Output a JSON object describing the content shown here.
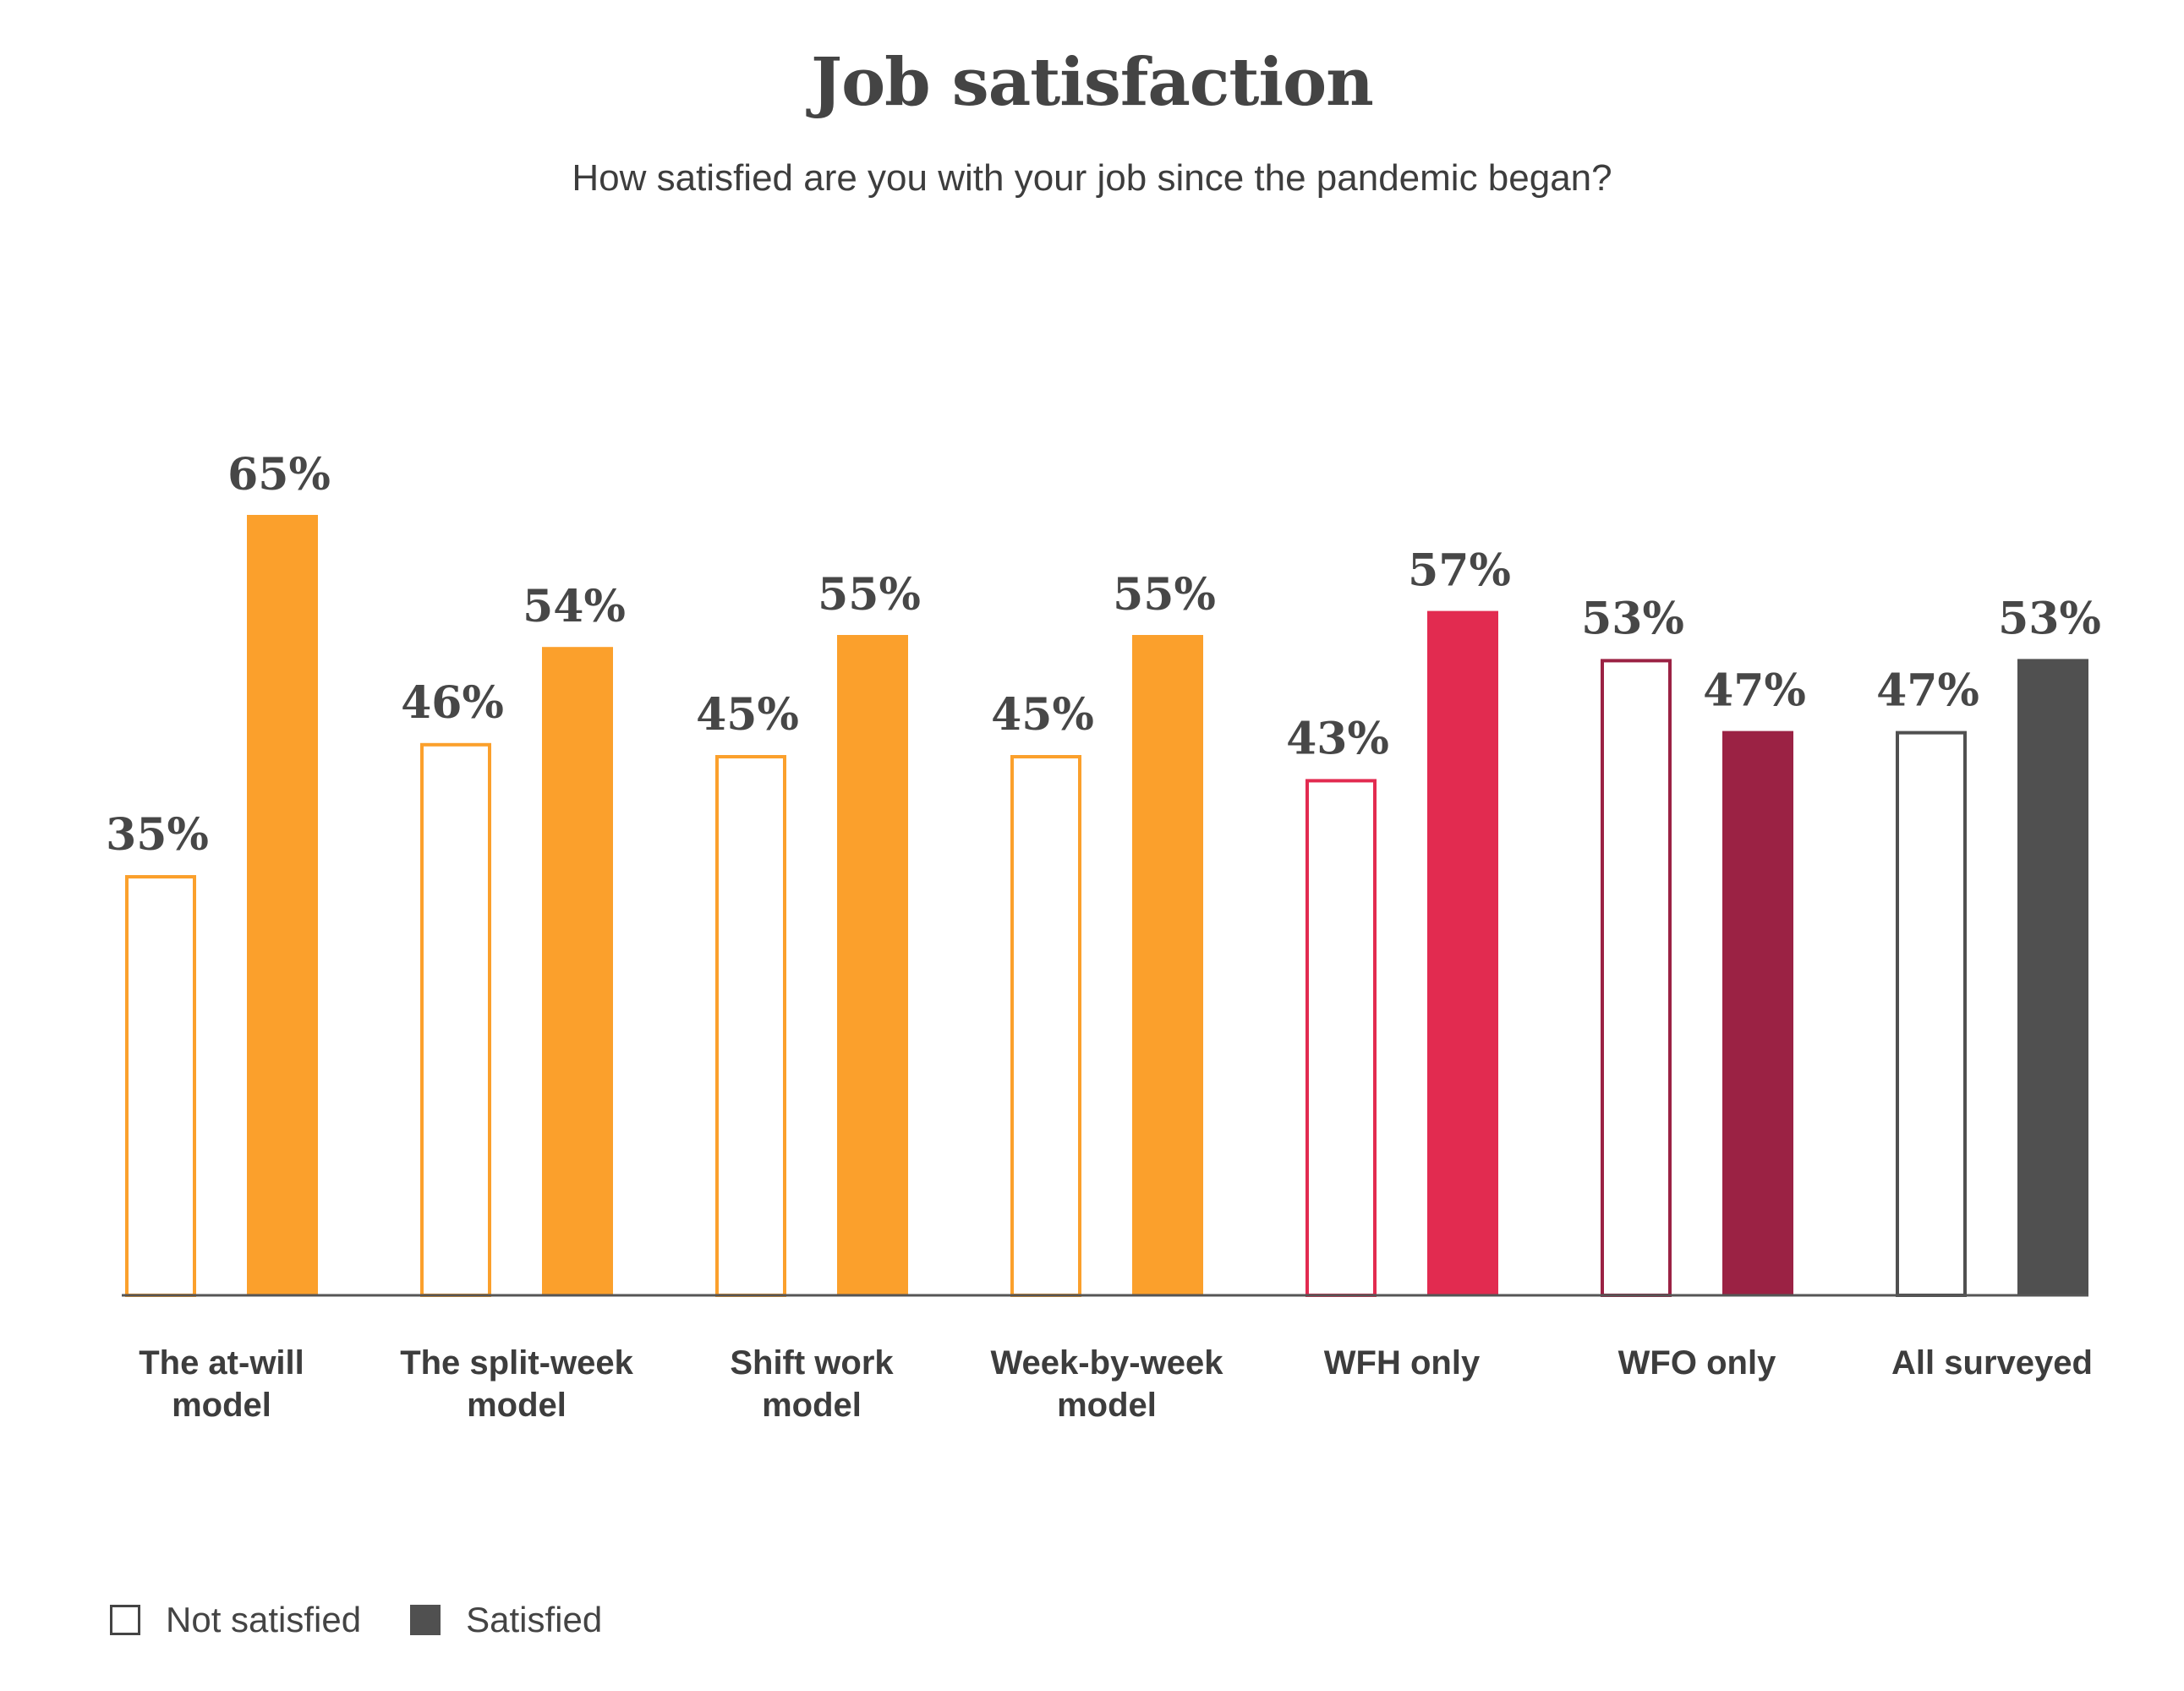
{
  "title": "Job satisfaction",
  "subtitle": "How satisfied are you with your job since the pandemic began?",
  "legend": {
    "not_satisfied": "Not satisfied",
    "satisfied": "Satisfied"
  },
  "chart_data": {
    "type": "bar",
    "title": "Job satisfaction",
    "subtitle": "How satisfied are you with your job since the pandemic began?",
    "categories": [
      [
        "The at-will",
        "model"
      ],
      [
        "The split-week",
        "model"
      ],
      [
        "Shift work",
        "model"
      ],
      [
        "Week-by-week",
        "model"
      ],
      [
        "WFH only"
      ],
      [
        "WFO only"
      ],
      [
        "All surveyed"
      ]
    ],
    "series": [
      {
        "name": "Not satisfied",
        "style": "outline",
        "values": [
          35,
          46,
          45,
          45,
          43,
          53,
          47
        ]
      },
      {
        "name": "Satisfied",
        "style": "filled",
        "values": [
          65,
          54,
          55,
          55,
          57,
          47,
          53
        ]
      }
    ],
    "value_suffix": "%",
    "category_colors": [
      "#FBA02C",
      "#FBA02C",
      "#FBA02C",
      "#FBA02C",
      "#E22B50",
      "#9B2244",
      "#505050"
    ],
    "ylim": [
      0,
      100
    ],
    "grid": false,
    "legend_position": "bottom-left"
  }
}
